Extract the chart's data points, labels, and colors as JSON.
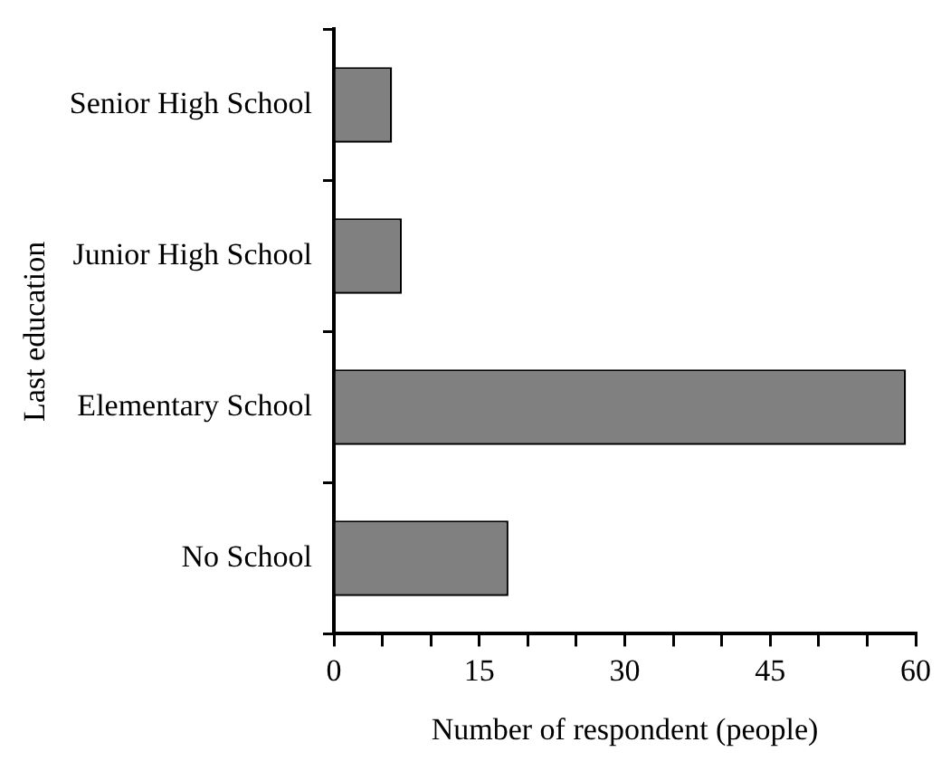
{
  "chart_data": {
    "type": "bar",
    "orientation": "horizontal",
    "xlabel": "Number of respondent (people)",
    "ylabel": "Last education",
    "categories": [
      "Senior High School",
      "Junior High School",
      "Elementary School",
      "No School"
    ],
    "values": [
      6,
      7,
      59,
      18
    ],
    "color": "#808080",
    "xlim": [
      0,
      60
    ],
    "xticks": [
      0,
      {
        "value": 5,
        "label": null
      },
      {
        "value": 10,
        "label": null
      },
      15,
      {
        "value": 20,
        "label": null
      },
      {
        "value": 25,
        "label": null
      },
      30,
      {
        "value": 35,
        "label": null
      },
      {
        "value": 40,
        "label": null
      },
      45,
      {
        "value": 50,
        "label": null
      },
      {
        "value": 55,
        "label": null
      },
      60
    ],
    "grid": false,
    "legend": false
  }
}
